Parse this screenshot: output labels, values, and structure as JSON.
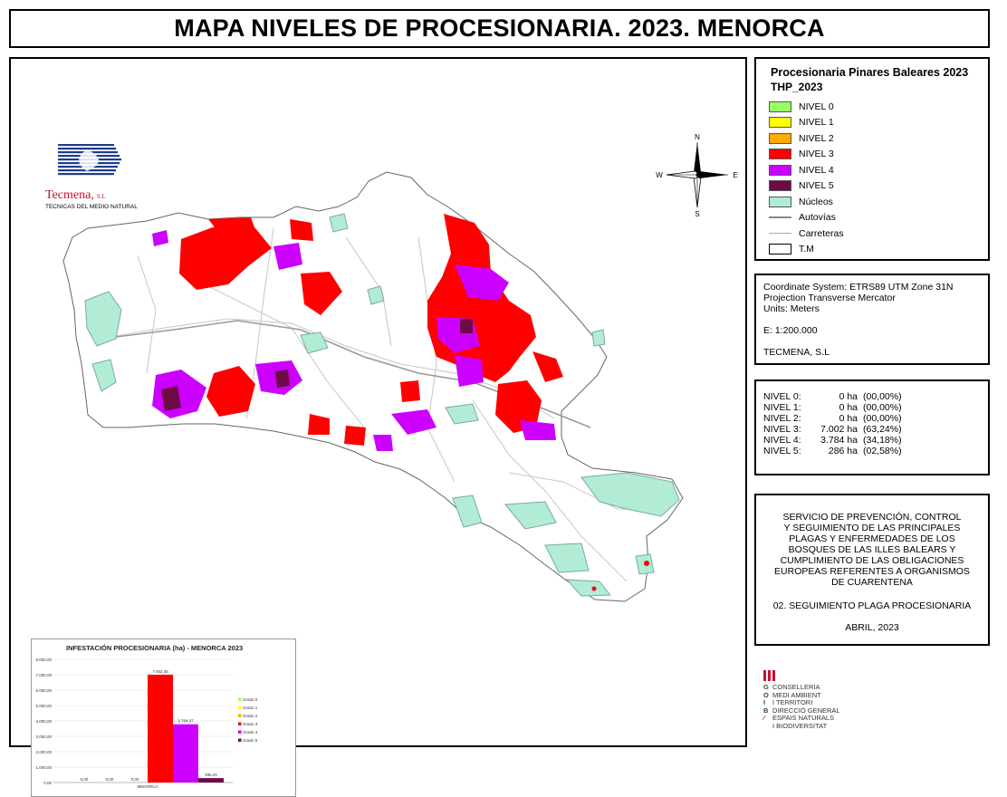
{
  "title": "MAPA NIVELES DE PROCESIONARIA. 2023. MENORCA",
  "logo": {
    "name": "Tecmena",
    "suffix": "S.L",
    "subtitle": "TECNICAS DEL MEDIO NATURAL",
    "color": "#c8102e",
    "stripe_color": "#1f3c8a"
  },
  "compass": {
    "n": "N",
    "s": "S",
    "e": "E",
    "w": "W"
  },
  "legend": {
    "title": "Procesionaria Pinares Baleares 2023",
    "subtitle": "THP_2023",
    "items": [
      {
        "label": "NIVEL 0",
        "color": "#99ff66",
        "kind": "fill"
      },
      {
        "label": "NIVEL 1",
        "color": "#ffff00",
        "kind": "fill"
      },
      {
        "label": "NIVEL 2",
        "color": "#ffaa00",
        "kind": "fill"
      },
      {
        "label": "NIVEL 3",
        "color": "#ff0000",
        "kind": "fill"
      },
      {
        "label": "NIVEL 4",
        "color": "#cc00ff",
        "kind": "fill"
      },
      {
        "label": "NIVEL 5",
        "color": "#6e0a46",
        "kind": "fill"
      },
      {
        "label": "Núcleos",
        "color": "#b2ecd4",
        "kind": "fill"
      },
      {
        "label": "Autovías",
        "color": "#888888",
        "kind": "thick-line"
      },
      {
        "label": "Carreteras",
        "color": "#aaaaaa",
        "kind": "thin-line"
      },
      {
        "label": "T.M",
        "color": "#ffffff",
        "kind": "outline"
      }
    ]
  },
  "coord": {
    "system": "Coordinate System: ETRS89 UTM Zone 31N",
    "projection": "Projection Transverse Mercator",
    "units": "Units: Meters",
    "scale": "E: 1:200.000",
    "author": "TECMENA, S.L"
  },
  "stats": [
    {
      "label": "NIVEL 0:",
      "ha": "0 ha",
      "pct": "(00,00%)"
    },
    {
      "label": "NIVEL 1:",
      "ha": "0 ha",
      "pct": "(00,00%)"
    },
    {
      "label": "NIVEL 2:",
      "ha": "0 ha",
      "pct": "(00,00%)"
    },
    {
      "label": "NIVEL 3:",
      "ha": "7.002 ha",
      "pct": "(63,24%)"
    },
    {
      "label": "NIVEL 4:",
      "ha": "3.784 ha",
      "pct": "(34,18%)"
    },
    {
      "label": "NIVEL 5:",
      "ha": "286 ha",
      "pct": "(02,58%)"
    }
  ],
  "service": {
    "lines": [
      "SERVICIO DE PREVENCIÓN, CONTROL",
      "Y SEGUIMIENTO DE LAS PRINCIPALES",
      "PLAGAS Y ENFERMEDADES DE LOS",
      "BOSQUES DE LAS ILLES BALEARS Y",
      "CUMPLIMIENTO DE LAS OBLIGACIONES",
      "EUROPEAS REFERENTES A ORGANISMOS",
      "DE CUARENTENA"
    ],
    "section": "02. SEGUIMIENTO PLAGA PROCESIONARIA",
    "date": "ABRIL, 2023"
  },
  "govern": {
    "letters": [
      "G",
      "O",
      "I",
      "B",
      "",
      ""
    ],
    "lines": [
      "CONSELLERIA",
      "MEDI AMBIENT",
      "I TERRITORI",
      "DIRECCIÓ GENERAL",
      "ESPAIS NATURALS",
      "I BIODIVERSITAT"
    ],
    "accent": "#c8102e"
  },
  "chart_data": {
    "type": "bar",
    "title": "INFESTACIÓN PROCESIONARIA (ha) - MENORCA 2023",
    "categories": [
      "MENORCA"
    ],
    "xlabel": "",
    "ylabel": "",
    "ylim": [
      0,
      8000
    ],
    "yticks": [
      "0,00",
      "1.000,00",
      "2.000,00",
      "3.000,00",
      "4.000,00",
      "5.000,00",
      "6.000,00",
      "7.000,00",
      "8.000,00"
    ],
    "grid": true,
    "legend_position": "right",
    "series": [
      {
        "name": "Grado 0",
        "values": [
          0
        ],
        "label": "0,00",
        "color": "#99ff66"
      },
      {
        "name": "Grado 1",
        "values": [
          0
        ],
        "label": "0,00",
        "color": "#ffff00"
      },
      {
        "name": "Grado 2",
        "values": [
          0
        ],
        "label": "0,00",
        "color": "#ffaa00"
      },
      {
        "name": "Grado 3",
        "values": [
          7002.45
        ],
        "label": "7.002,45",
        "color": "#ff0000"
      },
      {
        "name": "Grado 4",
        "values": [
          3784.37
        ],
        "label": "3.784,37",
        "color": "#cc00ff"
      },
      {
        "name": "Grado 5",
        "values": [
          286.2
        ],
        "label": "286,20",
        "color": "#6e0a46"
      }
    ]
  }
}
